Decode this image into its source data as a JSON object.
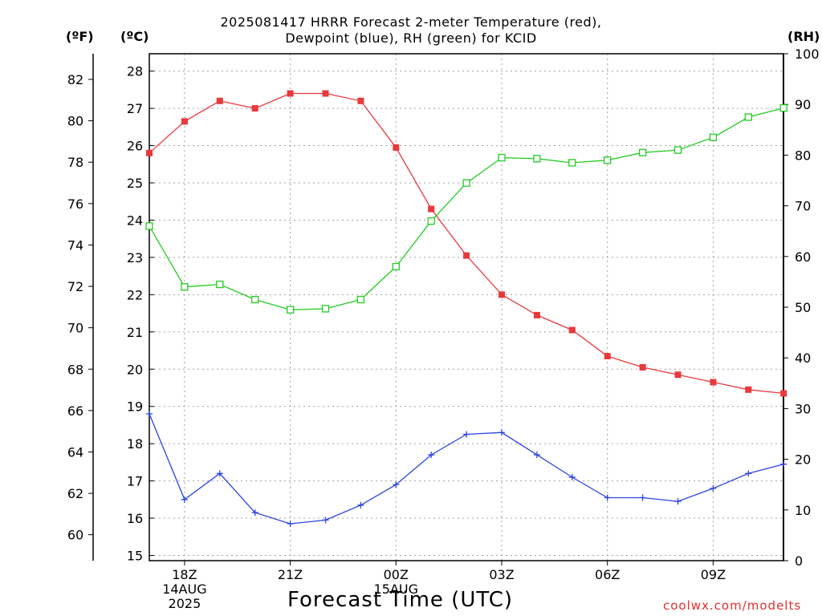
{
  "title_line1": "2025081417 HRRR Forecast 2-meter Temperature (red),",
  "title_line2": "Dewpoint (blue), RH (green) for KCID",
  "unit_f": "(ºF)",
  "unit_c": "(ºC)",
  "unit_rh": "(RH)",
  "x_title": "Forecast Time (UTC)",
  "credit": "coolwx.com/modelts",
  "colors": {
    "temperature": "#e8393c",
    "dewpoint": "#2b45e0",
    "rh": "#22cc22",
    "grid": "#a0a0a0"
  },
  "chart_data": {
    "type": "line",
    "title": "2025081417 HRRR Forecast 2-meter Temperature (red), Dewpoint (blue), RH (green) for KCID",
    "xlabel": "Forecast Time (UTC)",
    "x": [
      "17Z",
      "18Z",
      "19Z",
      "20Z",
      "21Z",
      "22Z",
      "23Z",
      "00Z",
      "01Z",
      "02Z",
      "03Z",
      "04Z",
      "05Z",
      "06Z",
      "07Z",
      "08Z",
      "09Z",
      "10Z",
      "11Z"
    ],
    "x_tick_labels": [
      {
        "hour": "18Z",
        "lines": [
          "18Z",
          "14AUG",
          "2025"
        ]
      },
      {
        "hour": "21Z",
        "lines": [
          "21Z"
        ]
      },
      {
        "hour": "00Z",
        "lines": [
          "00Z",
          "15AUG"
        ]
      },
      {
        "hour": "03Z",
        "lines": [
          "03Z"
        ]
      },
      {
        "hour": "06Z",
        "lines": [
          "06Z"
        ]
      },
      {
        "hour": "09Z",
        "lines": [
          "09Z"
        ]
      }
    ],
    "y_left_celsius": {
      "label": "(ºC)",
      "ylim": [
        15,
        28
      ],
      "ticks": [
        15,
        16,
        17,
        18,
        19,
        20,
        21,
        22,
        23,
        24,
        25,
        26,
        27,
        28
      ]
    },
    "y_left_fahrenheit": {
      "label": "(ºF)",
      "ticks": [
        60,
        62,
        64,
        66,
        68,
        70,
        72,
        74,
        76,
        78,
        80,
        82
      ]
    },
    "y_right_rh": {
      "label": "(RH)",
      "ylim": [
        0,
        100
      ],
      "ticks": [
        0,
        10,
        20,
        30,
        40,
        50,
        60,
        70,
        80,
        90,
        100
      ]
    },
    "grid": true,
    "series": [
      {
        "key": "temperature",
        "axis": "celsius",
        "marker": "filled-square",
        "values": [
          25.8,
          26.65,
          27.2,
          27.0,
          27.4,
          27.4,
          27.2,
          25.95,
          24.3,
          23.05,
          22.0,
          21.45,
          21.05,
          20.35,
          20.05,
          19.85,
          19.65,
          19.45,
          19.35
        ]
      },
      {
        "key": "dewpoint",
        "axis": "celsius",
        "marker": "plus",
        "values": [
          18.8,
          16.5,
          17.2,
          16.15,
          15.85,
          15.95,
          16.35,
          16.9,
          17.7,
          18.25,
          18.3,
          17.7,
          17.1,
          16.55,
          16.55,
          16.45,
          16.8,
          17.2,
          17.45
        ]
      },
      {
        "key": "rh",
        "axis": "rh",
        "marker": "open-square",
        "values": [
          66,
          54,
          54.5,
          51.5,
          49.5,
          49.7,
          51.5,
          58,
          67,
          74.5,
          79.5,
          79.3,
          78.5,
          79,
          80.5,
          81,
          83.5,
          87.5,
          89.3
        ]
      }
    ]
  }
}
